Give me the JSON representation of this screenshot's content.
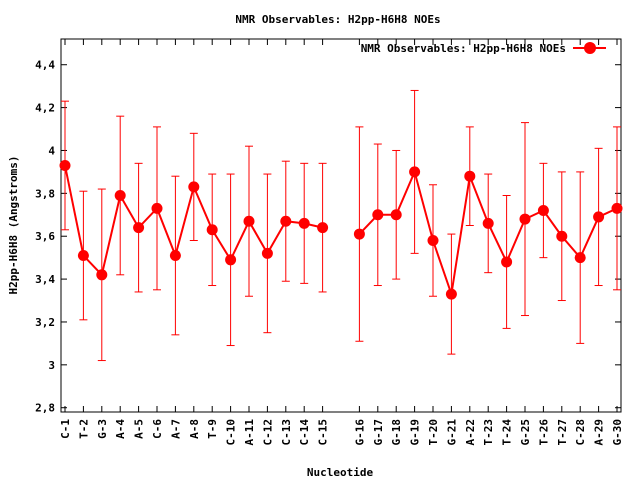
{
  "chart_data": {
    "type": "line",
    "title": "NMR Observables: H2pp-H6H8 NOEs",
    "xlabel": "Nucleotide",
    "ylabel": "H2pp-H6H8 (Angstroms)",
    "ylim": [
      2.78,
      4.52
    ],
    "yticks": [
      "2,8",
      "3",
      "3,2",
      "3,4",
      "3,6",
      "3,8",
      "4",
      "4,2",
      "4,4"
    ],
    "ytick_values": [
      2.8,
      3.0,
      3.2,
      3.4,
      3.6,
      3.8,
      4.0,
      4.2,
      4.4
    ],
    "legend": {
      "label": "NMR Observables: H2pp-H6H8 NOEs",
      "position": "top-right"
    },
    "color": "#ff0000",
    "grid": false,
    "categories": [
      "C-1",
      "T-2",
      "G-3",
      "A-4",
      "A-5",
      "C-6",
      "A-7",
      "A-8",
      "T-9",
      "C-10",
      "A-11",
      "C-12",
      "C-13",
      "C-14",
      "C-15",
      "",
      "G-16",
      "G-17",
      "G-18",
      "G-19",
      "T-20",
      "G-21",
      "A-22",
      "T-23",
      "T-24",
      "G-25",
      "T-26",
      "T-27",
      "C-28",
      "A-29",
      "G-30"
    ],
    "series": [
      {
        "name": "NMR Observables: H2pp-H6H8 NOEs",
        "values": [
          3.93,
          3.51,
          3.42,
          3.79,
          3.64,
          3.73,
          3.51,
          3.83,
          3.63,
          3.49,
          3.67,
          3.52,
          3.67,
          3.66,
          3.64,
          null,
          3.61,
          3.7,
          3.7,
          3.9,
          3.58,
          3.33,
          3.88,
          3.66,
          3.48,
          3.68,
          3.72,
          3.6,
          3.5,
          3.69,
          3.73
        ],
        "errors": [
          0.3,
          0.3,
          0.4,
          0.37,
          0.3,
          0.38,
          0.37,
          0.25,
          0.26,
          0.4,
          0.35,
          0.37,
          0.28,
          0.28,
          0.3,
          null,
          0.5,
          0.33,
          0.3,
          0.38,
          0.26,
          0.28,
          0.23,
          0.23,
          0.31,
          0.45,
          0.22,
          0.3,
          0.4,
          0.32,
          0.38
        ]
      }
    ]
  }
}
